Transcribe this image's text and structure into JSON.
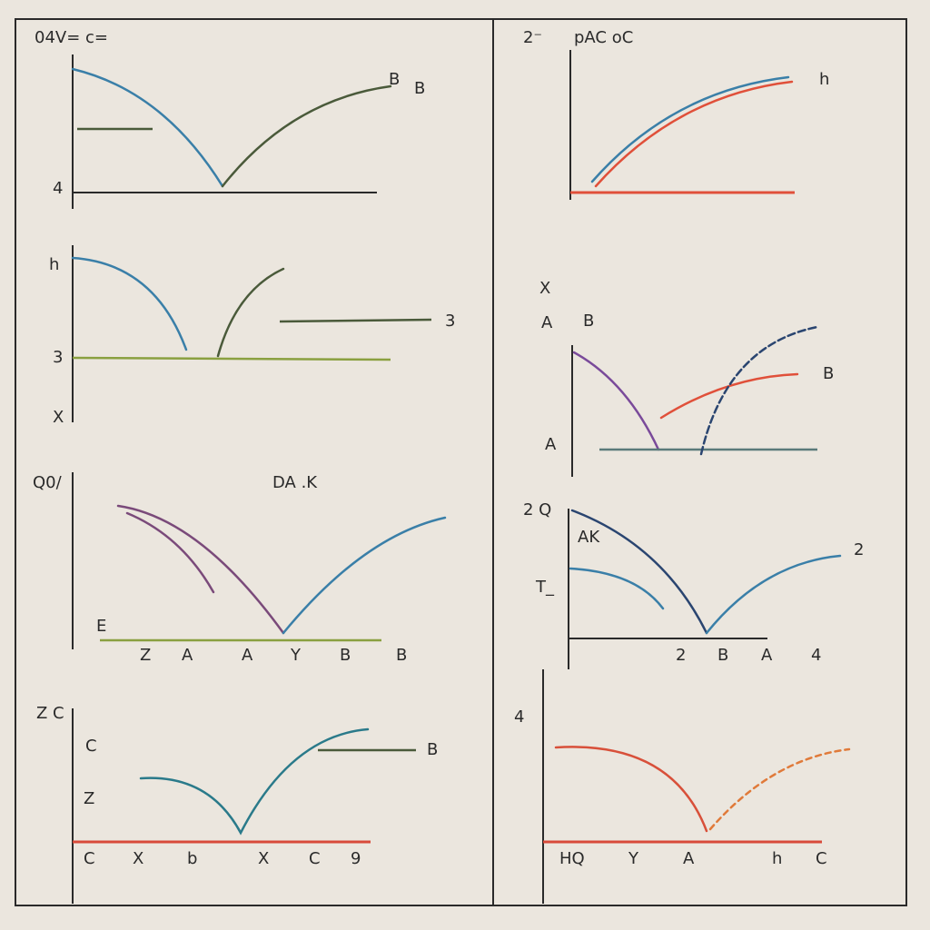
{
  "texts": [
    "04V= c=",
    "2⁻",
    "pAC oC",
    "B",
    "B",
    "4",
    "h",
    "3",
    "X",
    "3",
    "X",
    "A",
    "B",
    "B",
    "A",
    "h",
    "DA .K",
    "Q0/",
    "Z",
    "A",
    "A",
    "Y",
    "B",
    "B",
    "E",
    "2 Q",
    "AK",
    "T_",
    "2",
    "2",
    "B",
    "A",
    "4",
    "Z C",
    "C",
    "Z",
    "B",
    "C",
    "X",
    "b",
    "X",
    "C",
    "9",
    "4",
    "HQ",
    "Y",
    "A",
    "h",
    "C"
  ]
}
